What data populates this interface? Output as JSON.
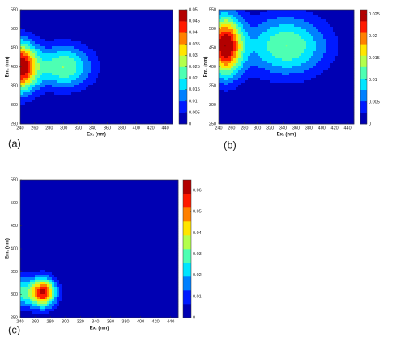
{
  "chart_data": [
    {
      "type": "contour",
      "label": "(a)",
      "x_label": "Ex. (nm)",
      "y_label": "Em. (nm)",
      "xlim": [
        240,
        450
      ],
      "ylim": [
        250,
        550
      ],
      "xticks": [
        240,
        260,
        280,
        300,
        320,
        340,
        360,
        380,
        400,
        420,
        440
      ],
      "yticks": [
        250,
        300,
        350,
        400,
        450,
        500,
        550
      ],
      "clim": [
        0,
        0.05
      ],
      "cticks": [
        0,
        0.005,
        0.01,
        0.015,
        0.02,
        0.025,
        0.03,
        0.035,
        0.04,
        0.045,
        0.05
      ],
      "colormap": "jet",
      "levels": 10,
      "peaks": [
        {
          "x": 240,
          "y": 400,
          "value": 0.05,
          "x_spread": 16,
          "y_spread": 45
        },
        {
          "x": 300,
          "y": 400,
          "value": 0.025,
          "x_spread": 28,
          "y_spread": 40
        }
      ]
    },
    {
      "type": "contour",
      "label": "(b)",
      "x_label": "Ex. (nm)",
      "y_label": "Em. (nm)",
      "xlim": [
        240,
        450
      ],
      "ylim": [
        250,
        550
      ],
      "xticks": [
        240,
        260,
        280,
        300,
        320,
        340,
        360,
        380,
        400,
        420,
        440
      ],
      "yticks": [
        250,
        300,
        350,
        400,
        450,
        500,
        550
      ],
      "clim": [
        0,
        0.026
      ],
      "cticks": [
        0,
        0.005,
        0.01,
        0.015,
        0.02,
        0.025
      ],
      "colormap": "jet",
      "levels": 10,
      "peaks": [
        {
          "x": 250,
          "y": 455,
          "value": 0.026,
          "x_spread": 18,
          "y_spread": 55
        },
        {
          "x": 345,
          "y": 455,
          "value": 0.013,
          "x_spread": 45,
          "y_spread": 55
        }
      ]
    },
    {
      "type": "contour",
      "label": "(c)",
      "x_label": "Ex. (nm)",
      "y_label": "Em. (nm)",
      "xlim": [
        240,
        450
      ],
      "ylim": [
        250,
        550
      ],
      "xticks": [
        240,
        260,
        280,
        300,
        320,
        340,
        360,
        380,
        400,
        420,
        440
      ],
      "yticks": [
        250,
        300,
        350,
        400,
        450,
        500,
        550
      ],
      "clim": [
        0,
        0.065
      ],
      "cticks": [
        0,
        0.01,
        0.02,
        0.03,
        0.04,
        0.05,
        0.06
      ],
      "colormap": "jet",
      "levels": 10,
      "peaks": [
        {
          "x": 270,
          "y": 305,
          "value": 0.06,
          "x_spread": 12,
          "y_spread": 22
        },
        {
          "x": 240,
          "y": 305,
          "value": 0.025,
          "x_spread": 12,
          "y_spread": 25
        }
      ]
    }
  ]
}
